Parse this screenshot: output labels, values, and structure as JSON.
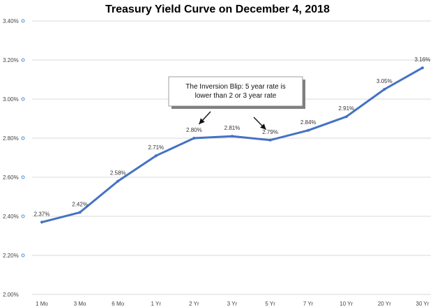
{
  "chart_data": {
    "type": "line",
    "title": "Treasury Yield Curve on December 4, 2018",
    "categories": [
      "1 Mo",
      "3 Mo",
      "6 Mo",
      "1 Yr",
      "2 Yr",
      "3 Yr",
      "5 Yr",
      "7 Yr",
      "10 Yr",
      "20 Yr",
      "30 Yr"
    ],
    "values": [
      2.37,
      2.42,
      2.58,
      2.71,
      2.8,
      2.81,
      2.79,
      2.84,
      2.91,
      3.05,
      3.16
    ],
    "data_labels": [
      "2.37%",
      "2.42%",
      "2.58%",
      "2.71%",
      "2.80%",
      "2.81%",
      "2.79%",
      "2.84%",
      "2.91%",
      "3.05%",
      "3.16%"
    ],
    "ylim": [
      2.0,
      3.4
    ],
    "yticks": [
      2.0,
      2.2,
      2.4,
      2.6,
      2.8,
      3.0,
      3.2,
      3.4
    ],
    "ytick_labels": [
      "2.00%",
      "2.20%",
      "2.40%",
      "2.60%",
      "2.80%",
      "3.00%",
      "3.20%",
      "3.40%"
    ],
    "xlabel": "",
    "ylabel": "",
    "grid": "horizontal",
    "line_color": "#4472C4",
    "grid_color": "#d9d9d9",
    "tick_marker_color": "#4a90d9",
    "annotation": {
      "lines": [
        "The Inversion Blip: 5 year rate is",
        "lower than 2 or 3 year rate"
      ],
      "arrows_point_to": [
        "2 Yr",
        "5 Yr"
      ]
    }
  }
}
